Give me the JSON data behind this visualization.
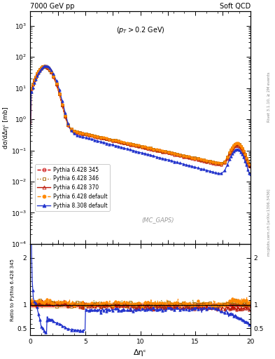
{
  "title_left": "7000 GeV pp",
  "title_right": "Soft QCD",
  "annotation": "(p_{T} > 0.2 GeV)",
  "watermark": "(MC_GAPS)",
  "ylabel_main": "dσ/dΔηᶜ [mb]",
  "ylabel_ratio": "Ratio to Pythia 6.428 345",
  "xlabel": "Δηᶜ",
  "right_label_top": "Rivet 3.1.10, ≥ 2M events",
  "right_label_bottom": "mcplots.cern.ch [arXiv:1306.3436]",
  "ylim_main_log": [
    -4,
    3.5
  ],
  "ylim_ratio": [
    0.35,
    2.3
  ],
  "xlim": [
    0,
    20
  ],
  "series": [
    {
      "label": "Pythia 6.428 345",
      "color": "#cc0000",
      "marker": "o",
      "linestyle": "--",
      "lw": 0.8,
      "ms": 2.5,
      "filled": false
    },
    {
      "label": "Pythia 6.428 346",
      "color": "#aa6600",
      "marker": "s",
      "linestyle": ":",
      "lw": 0.8,
      "ms": 2.5,
      "filled": false
    },
    {
      "label": "Pythia 6.428 370",
      "color": "#bb1100",
      "marker": "^",
      "linestyle": "-",
      "lw": 0.8,
      "ms": 2.5,
      "filled": false
    },
    {
      "label": "Pythia 6.428 default",
      "color": "#ff8800",
      "marker": "o",
      "linestyle": "--",
      "lw": 0.8,
      "ms": 2.5,
      "filled": true
    },
    {
      "label": "Pythia 8.308 default",
      "color": "#2233cc",
      "marker": "^",
      "linestyle": "-",
      "lw": 0.9,
      "ms": 2.5,
      "filled": true
    }
  ],
  "background_color": "#ffffff",
  "fig_width": 3.93,
  "fig_height": 5.12
}
